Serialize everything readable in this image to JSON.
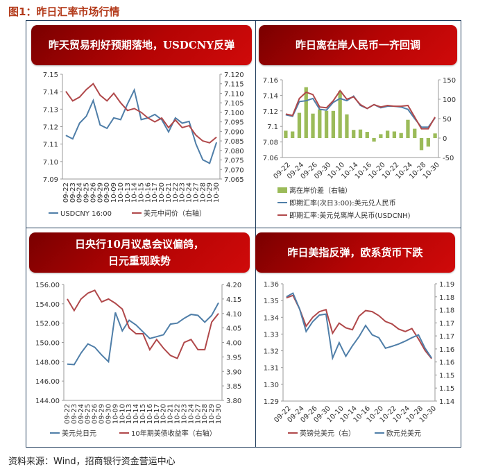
{
  "figure_title": "图1：昨日汇率市场行情",
  "source": "资料来源：Wind，招商银行资金营运中心",
  "colors": {
    "blue": "#4f7ea8",
    "red": "#b0484a",
    "green": "#9bbb59",
    "header_red": "#b50404"
  },
  "chart_data": [
    {
      "type": "line",
      "title": "昨天贸易利好预期落地，USDCNY反弹",
      "categories": [
        "09-22",
        "09-23",
        "09-24",
        "09-25",
        "09-26",
        "09-29",
        "09-30",
        "10-09",
        "10-10",
        "10-13",
        "10-14",
        "10-15",
        "10-16",
        "10-17",
        "10-20",
        "10-21",
        "10-22",
        "10-23",
        "10-24",
        "10-27",
        "10-28",
        "10-29",
        "10-30"
      ],
      "ylim": [
        7.09,
        7.15
      ],
      "y2lim": [
        7.065,
        7.12
      ],
      "yticks": [
        "7.15",
        "7.14",
        "7.13",
        "7.12",
        "7.11",
        "7.10",
        "7.09"
      ],
      "y2ticks": [
        "7.120",
        "7.115",
        "7.110",
        "7.105",
        "7.100",
        "7.095",
        "7.090",
        "7.085",
        "7.080",
        "7.075",
        "7.070",
        "7.065"
      ],
      "series": [
        {
          "name": "USDCNY 16:00",
          "axis": "left",
          "color": "#4f7ea8",
          "values": [
            7.115,
            7.113,
            7.122,
            7.126,
            7.135,
            7.121,
            7.119,
            7.125,
            7.124,
            7.133,
            7.141,
            7.124,
            7.125,
            7.127,
            7.124,
            7.117,
            7.125,
            7.122,
            7.123,
            7.11,
            7.101,
            7.099,
            7.111
          ]
        },
        {
          "name": "美元中间价（右轴）",
          "axis": "right",
          "color": "#b0484a",
          "values": [
            7.111,
            7.106,
            7.108,
            7.112,
            7.115,
            7.109,
            7.106,
            7.11,
            7.105,
            7.101,
            7.102,
            7.1,
            7.097,
            7.095,
            7.097,
            7.092,
            7.096,
            7.092,
            7.093,
            7.088,
            7.085,
            7.084,
            7.087
          ]
        }
      ]
    },
    {
      "type": "bar+line",
      "title": "昨日离在岸人民币一齐回调",
      "categories": [
        "09-22",
        "09-23",
        "09-24",
        "09-25",
        "09-26",
        "09-29",
        "09-30",
        "10-09",
        "10-10",
        "10-13",
        "10-14",
        "10-15",
        "10-16",
        "10-17",
        "10-20",
        "10-21",
        "10-22",
        "10-23",
        "10-24",
        "10-27",
        "10-28",
        "10-29",
        "10-30"
      ],
      "tick_labels": [
        "09-22",
        "09-24",
        "09-26",
        "09-30",
        "10-10",
        "10-14",
        "10-16",
        "10-20",
        "10-22",
        "10-24",
        "10-28",
        "10-30"
      ],
      "ylim": [
        7.06,
        7.16
      ],
      "y2lim": [
        -50,
        150
      ],
      "yticks": [
        "7.16",
        "7.14",
        "7.12",
        "7.1",
        "7.08",
        "7.06"
      ],
      "y2ticks": [
        "150",
        "100",
        "50",
        "0",
        "-50"
      ],
      "series": [
        {
          "name": "离在岸价差（右轴）",
          "axis": "right",
          "kind": "bar",
          "color": "#9bbb59",
          "values": [
            19,
            17,
            65,
            131,
            63,
            74,
            70,
            70,
            121,
            61,
            21,
            22,
            16,
            -9,
            10,
            19,
            17,
            13,
            47,
            24,
            -31,
            -22,
            12
          ]
        },
        {
          "name": "即期汇率(次日3:00):美元兑人民币",
          "axis": "left",
          "color": "#4f7ea8",
          "values": [
            7.115,
            7.113,
            7.132,
            7.133,
            7.136,
            7.122,
            7.121,
            7.131,
            7.136,
            7.133,
            7.139,
            7.127,
            7.123,
            7.128,
            7.124,
            7.126,
            7.126,
            7.125,
            7.122,
            7.11,
            7.099,
            7.099,
            7.111
          ]
        },
        {
          "name": "即期汇率:美元兑离岸人民币(USDCNH)",
          "axis": "left",
          "color": "#b0484a",
          "values": [
            7.116,
            7.114,
            7.136,
            7.144,
            7.141,
            7.125,
            7.124,
            7.133,
            7.146,
            7.135,
            7.138,
            7.128,
            7.123,
            7.128,
            7.125,
            7.127,
            7.126,
            7.126,
            7.127,
            7.112,
            7.097,
            7.097,
            7.112
          ]
        }
      ]
    },
    {
      "type": "line",
      "title": "日央行10月议息会议偏鸽，\n日元重现跌势",
      "categories": [
        "09-22",
        "09-23",
        "09-24",
        "09-25",
        "09-26",
        "09-29",
        "09-30",
        "10-09",
        "10-10",
        "10-13",
        "10-14",
        "10-15",
        "10-16",
        "10-17",
        "10-20",
        "10-21",
        "10-22",
        "10-23",
        "10-24",
        "10-27",
        "10-28",
        "10-29",
        "10-30"
      ],
      "ylim": [
        144,
        156
      ],
      "y2lim": [
        3.8,
        4.2
      ],
      "yticks": [
        "156.00",
        "154.00",
        "152.00",
        "150.00",
        "148.00",
        "146.00",
        "144.00"
      ],
      "y2ticks": [
        "4.20",
        "4.15",
        "4.10",
        "4.05",
        "4.00",
        "3.95",
        "3.90",
        "3.85",
        "3.80"
      ],
      "series": [
        {
          "name": "美元兑日元",
          "axis": "left",
          "color": "#4f7ea8",
          "values": [
            147.75,
            147.7,
            148.9,
            149.85,
            149.5,
            148.7,
            148.0,
            153.1,
            151.2,
            152.3,
            151.8,
            151.1,
            150.4,
            150.6,
            150.8,
            151.9,
            152.0,
            152.5,
            152.9,
            152.8,
            152.1,
            152.8,
            154.1
          ]
        },
        {
          "name": "10年期美债收益率（右轴）",
          "axis": "right",
          "color": "#b0484a",
          "values": [
            4.15,
            4.11,
            4.15,
            4.17,
            4.18,
            4.14,
            4.15,
            4.135,
            4.115,
            4.05,
            4.03,
            4.03,
            3.975,
            4.01,
            3.98,
            3.955,
            3.945,
            4.0,
            4.01,
            3.975,
            3.975,
            4.07,
            4.1
          ]
        }
      ]
    },
    {
      "type": "line",
      "title": "昨日美指反弹，欧系货币下跌",
      "categories": [
        "09-22",
        "09-23",
        "09-24",
        "09-25",
        "09-26",
        "09-29",
        "09-30",
        "10-09",
        "10-10",
        "10-13",
        "10-14",
        "10-15",
        "10-16",
        "10-17",
        "10-20",
        "10-21",
        "10-22",
        "10-23",
        "10-24",
        "10-27",
        "10-28",
        "10-29",
        "10-30"
      ],
      "tick_labels": [
        "09-22",
        "09-24",
        "09-26",
        "09-30",
        "10-10",
        "10-14",
        "10-16",
        "10-20",
        "10-22",
        "10-24",
        "10-28",
        "10-30"
      ],
      "ylim": [
        1.29,
        1.36
      ],
      "y2lim": [
        1.14,
        1.185
      ],
      "yticks": [
        "1.36",
        "1.35",
        "1.34",
        "1.33",
        "1.32",
        "1.31",
        "1.30",
        "1.29"
      ],
      "y2ticks": [
        "1.19",
        "1.18",
        "1.18",
        "1.17",
        "1.17",
        "1.16",
        "1.16",
        "1.15",
        "1.15",
        "1.14"
      ],
      "series": [
        {
          "name": "英镑兑美元（右）",
          "axis": "left",
          "color": "#b0484a",
          "values": [
            1.3516,
            1.3531,
            1.345,
            1.3347,
            1.34,
            1.3434,
            1.3446,
            1.3305,
            1.3365,
            1.3337,
            1.3326,
            1.3406,
            1.344,
            1.3434,
            1.341,
            1.3375,
            1.336,
            1.333,
            1.3315,
            1.3333,
            1.3271,
            1.3202,
            1.3153
          ]
        },
        {
          "name": "欧元兑美元",
          "axis": "right",
          "color": "#4f7ea8",
          "values": [
            1.18,
            1.1814,
            1.1754,
            1.1667,
            1.1705,
            1.173,
            1.1734,
            1.1565,
            1.1624,
            1.1572,
            1.1612,
            1.1647,
            1.169,
            1.1654,
            1.1643,
            1.1603,
            1.161,
            1.1619,
            1.163,
            1.1643,
            1.1654,
            1.1603,
            1.1565
          ]
        }
      ]
    }
  ]
}
